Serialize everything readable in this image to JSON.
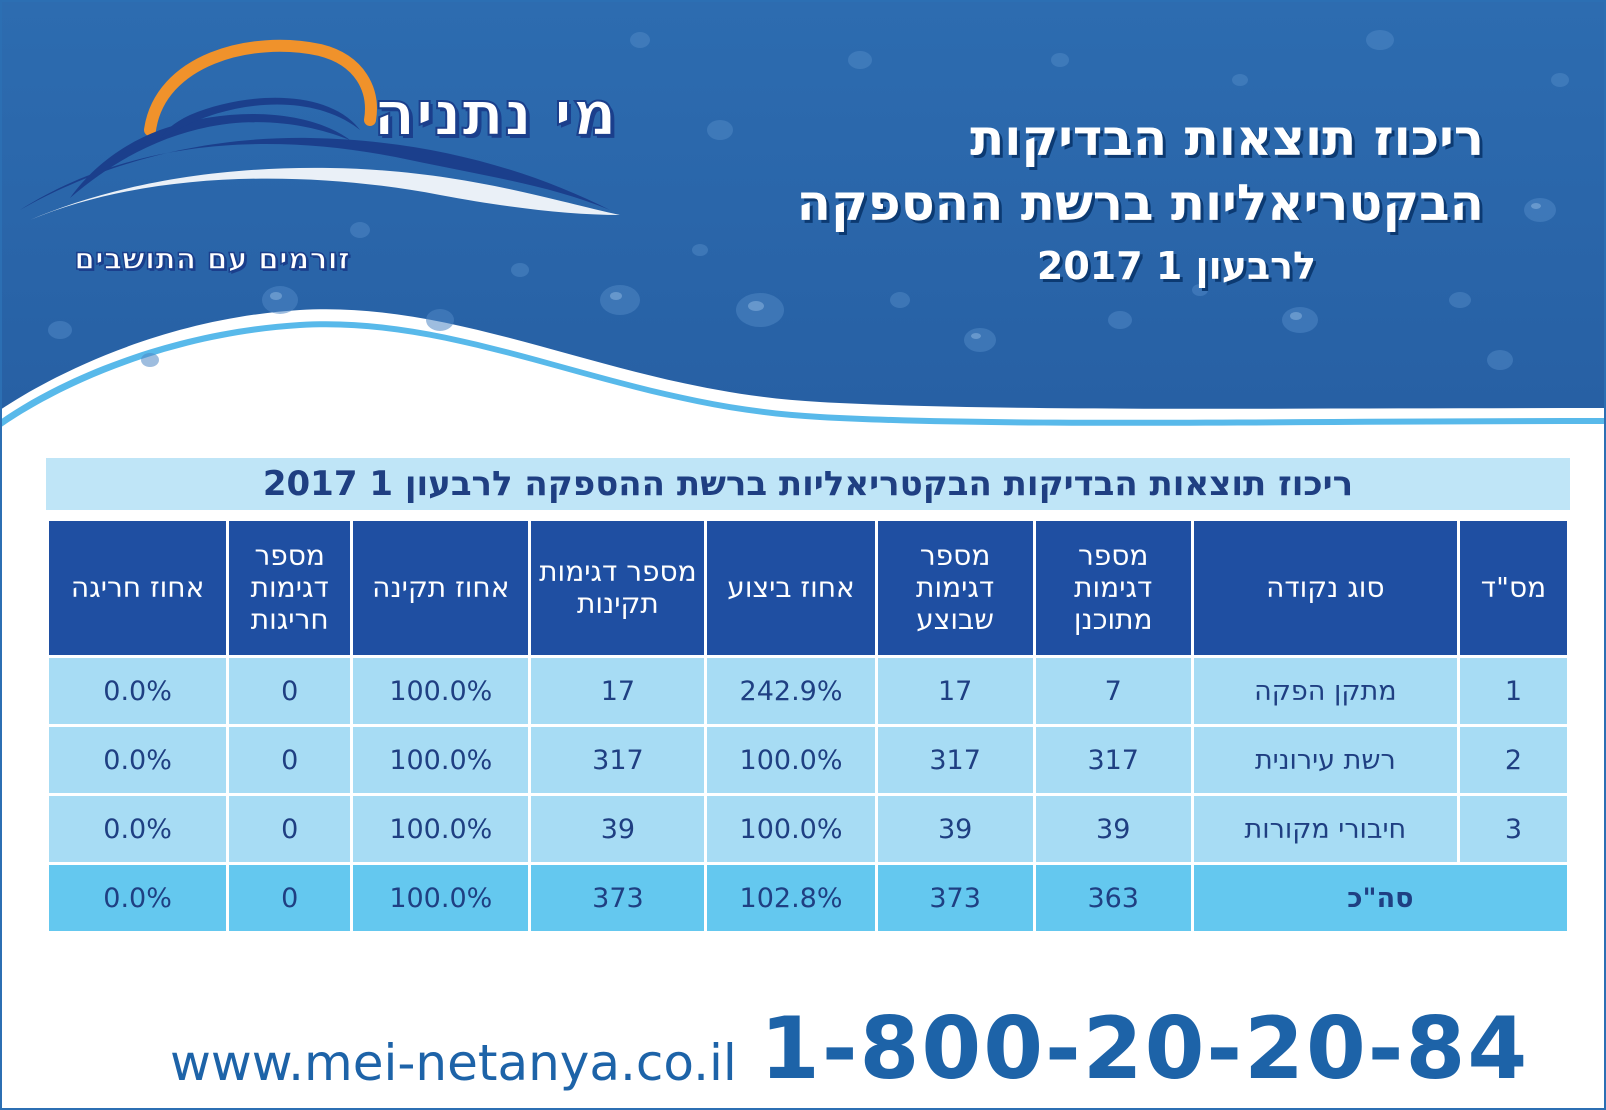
{
  "header": {
    "title_line1": "ריכוז תוצאות הבדיקות",
    "title_line2": "הבקטריאליות ברשת ההספקה",
    "title_line3": "לרבעון 1 2017"
  },
  "logo": {
    "name": "מי נתניה",
    "slogan": "זורמים עם התושבים"
  },
  "table": {
    "title": "ריכוז תוצאות הבדיקות הבקטריאליות ברשת ההספקה לרבעון 1 2017",
    "headers": [
      "מס\"ד",
      "סוג נקודה",
      "מספר דגימות מתוכנן",
      "מספר דגימות שבוצע",
      "אחוז ביצוע",
      "מספר דגימות תקינות",
      "אחוז תקינה",
      "מספר דגימות חריגות",
      "אחוז חריגה"
    ],
    "rows": [
      [
        "1",
        "מתקן הפקה",
        "7",
        "17",
        "242.9%",
        "17",
        "100.0%",
        "0",
        "0.0%"
      ],
      [
        "2",
        "רשת עירונית",
        "317",
        "317",
        "100.0%",
        "317",
        "100.0%",
        "0",
        "0.0%"
      ],
      [
        "3",
        "חיבורי מקורות",
        "39",
        "39",
        "100.0%",
        "39",
        "100.0%",
        "0",
        "0.0%"
      ]
    ],
    "total": [
      "סה\"כ",
      "363",
      "373",
      "102.8%",
      "373",
      "100.0%",
      "0",
      "0.0%"
    ]
  },
  "footer": {
    "website": "www.mei-netanya.co.il",
    "phone": "1-800-20-20-84"
  },
  "colors": {
    "header_blue": "#2b69ad",
    "table_header": "#1f4fa2",
    "row_light": "#a7dcf4",
    "row_total": "#64c8ef",
    "text_dark_blue": "#1f3f82",
    "accent_orange": "#f0922b"
  }
}
